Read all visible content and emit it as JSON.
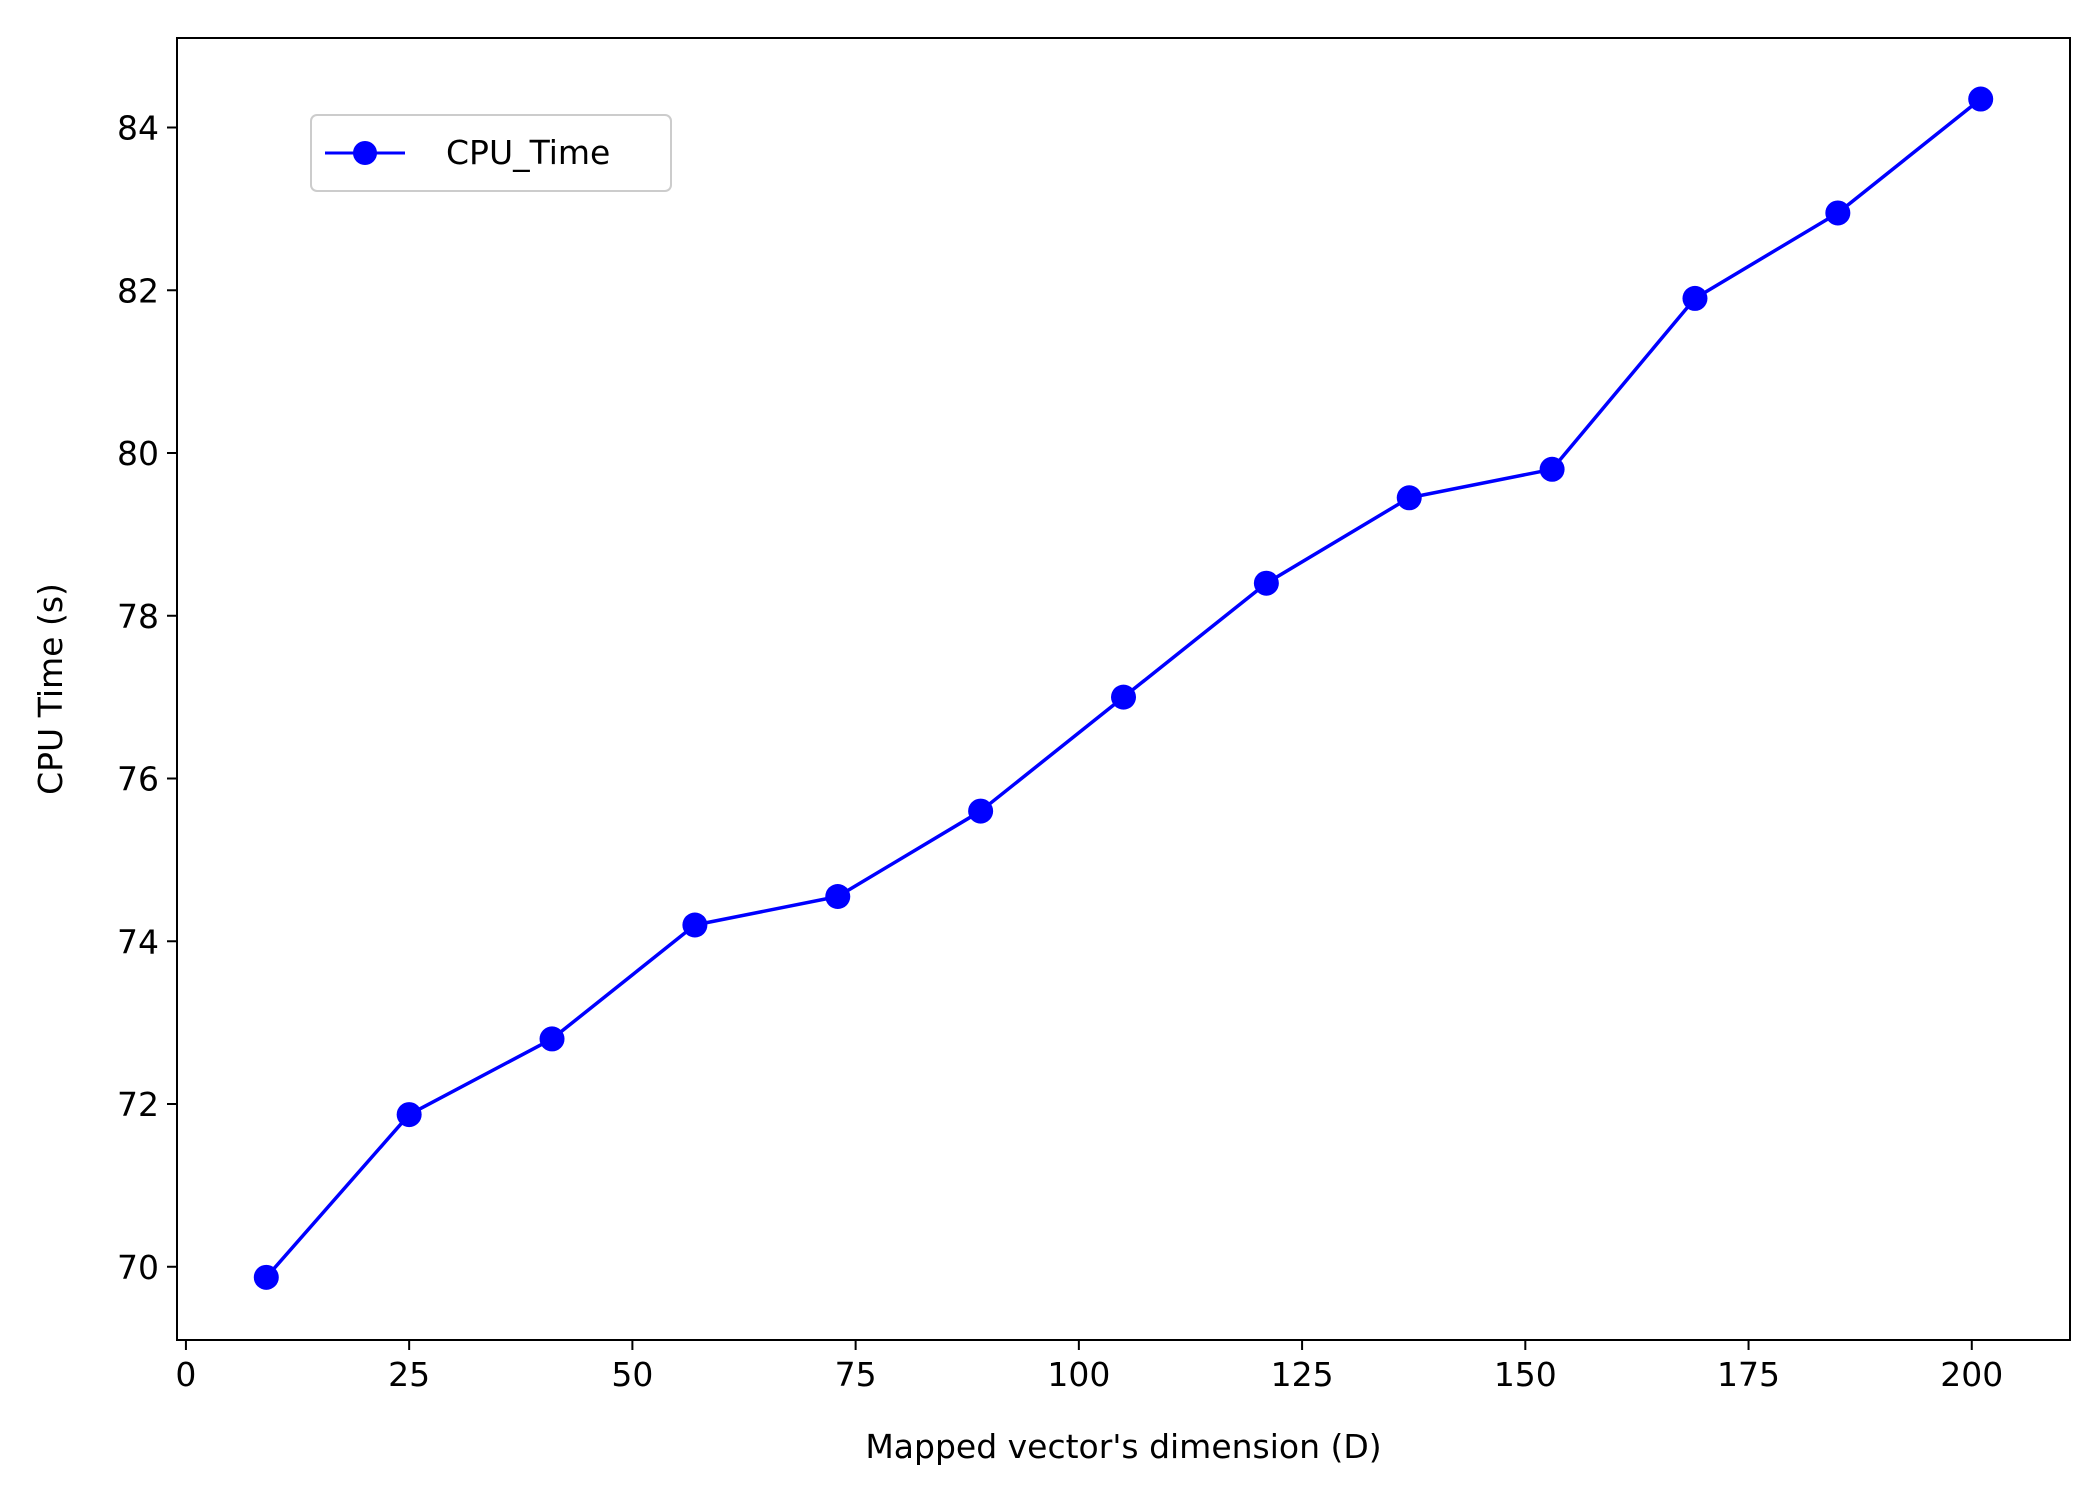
{
  "chart_data": {
    "type": "line",
    "xlabel": "Mapped vector's dimension (D)",
    "ylabel": "CPU Time (s)",
    "xlim": [
      -1,
      211
    ],
    "ylim": [
      69.1,
      85.1
    ],
    "xticks": [
      0,
      25,
      50,
      75,
      100,
      125,
      150,
      175,
      200
    ],
    "yticks": [
      70,
      72,
      74,
      76,
      78,
      80,
      82,
      84
    ],
    "grid": false,
    "legend_position": "top-left",
    "series": [
      {
        "name": "CPU_Time",
        "color": "#0000ff",
        "marker": "circle",
        "x": [
          9,
          25,
          41,
          57,
          73,
          89,
          105,
          121,
          137,
          153,
          169,
          185,
          201
        ],
        "y": [
          69.87,
          71.87,
          72.8,
          74.2,
          74.55,
          75.6,
          77.0,
          78.4,
          79.45,
          79.8,
          81.9,
          82.95,
          84.35
        ]
      }
    ]
  }
}
